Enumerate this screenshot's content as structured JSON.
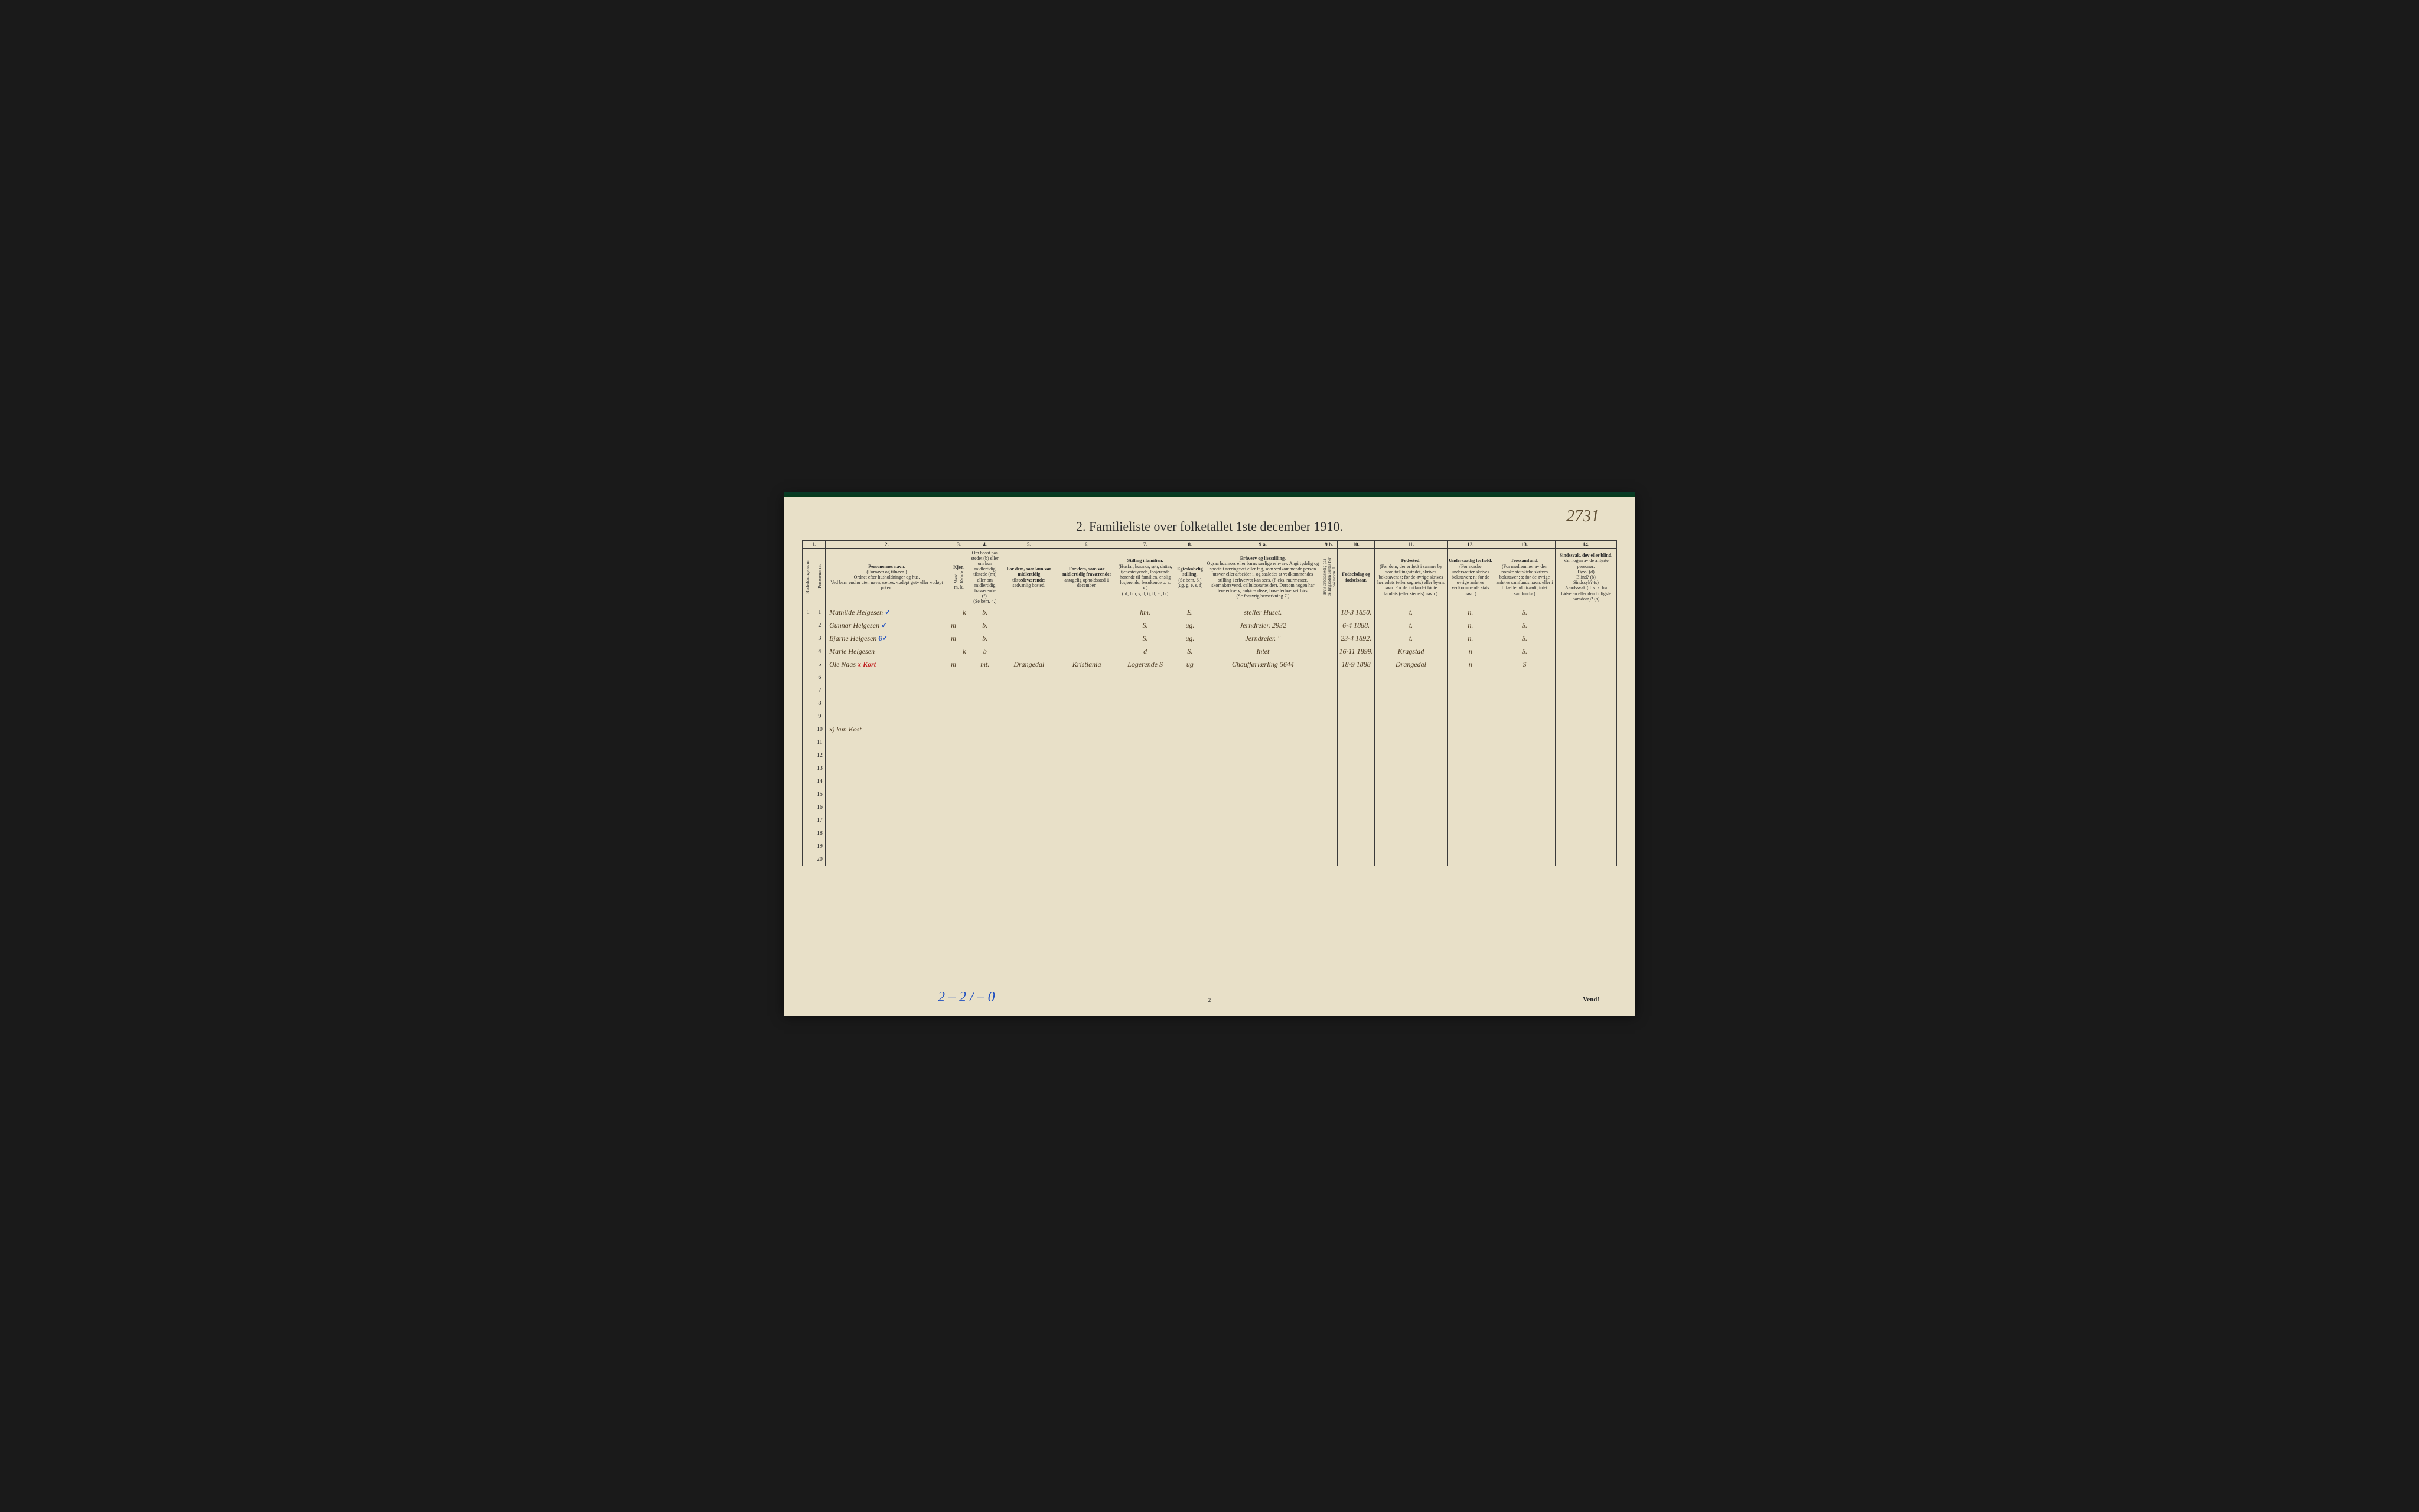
{
  "corner_ref": "2731",
  "title": "2.  Familieliste over folketallet 1ste december 1910.",
  "col_numbers": [
    "1.",
    "2.",
    "3.",
    "4.",
    "5.",
    "6.",
    "7.",
    "8.",
    "9 a.",
    "9 b.",
    "10.",
    "11.",
    "12.",
    "13.",
    "14."
  ],
  "col1_sub": [
    "Husholdningenes nr.",
    "Personenes nr."
  ],
  "headers": {
    "c2": {
      "b": "Personernes navn.",
      "t": "(Fornavn og tilnavn.)\nOrdnet efter husholdninger og hus.\nVed barn endnu uten navn, sættes: «udøpt gut» eller «udøpt pike»."
    },
    "c3": {
      "b": "Kjøn.",
      "sub1": "Mand.",
      "sub2": "Kvinde.",
      "t": "m.  k."
    },
    "c4": {
      "t": "Om bosat paa stedet (b) eller om kun midlertidig tilstede (mt) eller om midlertidig fraværende (f).\n(Se bem. 4.)"
    },
    "c5": {
      "b": "For dem, som kun var midlertidig tilstedeværende:",
      "t": "sedvanlig bosted."
    },
    "c6": {
      "b": "For dem, som var midlertidig fraværende:",
      "t": "antagelig opholdssted 1 december."
    },
    "c7": {
      "b": "Stilling i familien.",
      "t": "(Husfar, husmor, søn, datter, tjenestetyende, losjerende hørende til familien, enslig losjerende, besøkende o. s. v.)\n(hf, hm, s, d, tj, fl, el, b.)"
    },
    "c8": {
      "b": "Egteskabelig stilling.",
      "t": "(Se bem. 6.)\n(ug, g, e, s, f)"
    },
    "c9a": {
      "b": "Erhverv og livsstilling.",
      "t": "Ogsaa husmors eller barns særlige erhverv. Angi tydelig og specielt næringsvei eller fag, som vedkommende person utøver eller arbeider i, og saaledes at vedkommendes stilling i erhvervet kan sees, (f. eks. murmester, skomakersvend, cellulosearbeider). Dersom nogen har flere erhverv, anføres disse, hovederhvervet først.\n(Se forøvrig bemerkning 7.)"
    },
    "c9b": {
      "t": "Hvis arbeidsledig paa tællingstiden sættes her bokstaven: l."
    },
    "c10": {
      "b": "Fødselsdag og fødselsaar."
    },
    "c11": {
      "b": "Fødested.",
      "t": "(For dem, der er født i samme by som tællingsstedet, skrives bokstaven: t; for de øvrige skrives herredets (eller sognets) eller byens navn. For de i utlandet fødte: landets (eller stedets) navn.)"
    },
    "c12": {
      "b": "Undersaatlig forhold.",
      "t": "(For norske undersaatter skrives bokstaven: n; for de øvrige anføres vedkommende stats navn.)"
    },
    "c13": {
      "b": "Trossamfund.",
      "t": "(For medlemmer av den norske statskirke skrives bokstaven: s; for de øvrige anføres samfunds navn, eller i tilfælde: «Uttraadt, intet samfund».)"
    },
    "c14": {
      "b": "Sindssvak, døv eller blind.",
      "t": "Var nogen av de anførte personer:\nDøv?     (d)\nBlind?    (b)\nSindssyk? (s)\nAandssvak (d. v. s. fra fødselen eller den tidligste barndom)? (a)"
    }
  },
  "rows": [
    {
      "hn": "1",
      "pn": "1",
      "name": "Mathilde Helgesen",
      "tick": "✓",
      "sex_m": "",
      "sex_k": "k",
      "c4": "b.",
      "c5": "",
      "c6": "",
      "c7": "hm.",
      "c8": "E.",
      "c9a": "steller Huset.",
      "c9b": "",
      "c10": "18-3 1850.",
      "c11": "t.",
      "c12": "n.",
      "c13": "S.",
      "c14": ""
    },
    {
      "hn": "",
      "pn": "2",
      "name": "Gunnar Helgesen",
      "tick": "✓",
      "sex_m": "m",
      "sex_k": "",
      "c4": "b.",
      "c5": "",
      "c6": "",
      "c7": "S.",
      "c8": "ug.",
      "c9a": "Jerndreier.  2932",
      "c9b": "",
      "c10": "6-4 1888.",
      "c11": "t.",
      "c12": "n.",
      "c13": "S.",
      "c14": ""
    },
    {
      "hn": "",
      "pn": "3",
      "name": "Bjarne Helgesen",
      "tick": "6✓",
      "sex_m": "m",
      "sex_k": "",
      "c4": "b.",
      "c5": "",
      "c6": "",
      "c7": "S.",
      "c8": "ug.",
      "c9a": "Jerndreier.   \"",
      "c9b": "",
      "c10": "23-4 1892.",
      "c11": "t.",
      "c12": "n.",
      "c13": "S.",
      "c14": ""
    },
    {
      "hn": "",
      "pn": "4",
      "name": "Marie Helgesen",
      "tick": "",
      "sex_m": "",
      "sex_k": "k",
      "c4": "b",
      "c5": "",
      "c6": "",
      "c7": "d",
      "c8": "S.",
      "c9a": "Intet",
      "c9b": "",
      "c10": "16-11 1899.",
      "c11": "Kragstad",
      "c12": "n",
      "c13": "S.",
      "c14": ""
    },
    {
      "hn": "",
      "pn": "5",
      "name": "Ole Naas",
      "tick": "x Kort",
      "sex_m": "m",
      "sex_k": "",
      "c4": "mt.",
      "c5": "Drangedal",
      "c6": "Kristiania",
      "c7": "Logerende S",
      "c8": "ug",
      "c9a": "Chaufførlærling  5644",
      "c9b": "",
      "c10": "18-9 1888",
      "c11": "Drangedal",
      "c12": "n",
      "c13": "S",
      "c14": ""
    }
  ],
  "note_row": 10,
  "note_text": "x) kun Kost",
  "empty_rows": [
    6,
    7,
    8,
    9,
    11,
    12,
    13,
    14,
    15,
    16,
    17,
    18,
    19,
    20
  ],
  "footer_left": "2 – 2 / – 0",
  "footer_pg": "2",
  "footer_right": "Vend!",
  "colors": {
    "page_bg": "#e8e0c8",
    "border": "#3a3a3a",
    "ink": "#4a3820",
    "blue": "#2050c0",
    "red": "#c02020"
  },
  "col_widths_pct": [
    1.6,
    1.6,
    17,
    1.5,
    1.5,
    4.2,
    8,
    8,
    8.2,
    4.2,
    16,
    2.3,
    5.2,
    10,
    6.5,
    8.5,
    8.5
  ],
  "font": {
    "title_pt": 22,
    "header_pt": 8,
    "data_pt": 12
  }
}
